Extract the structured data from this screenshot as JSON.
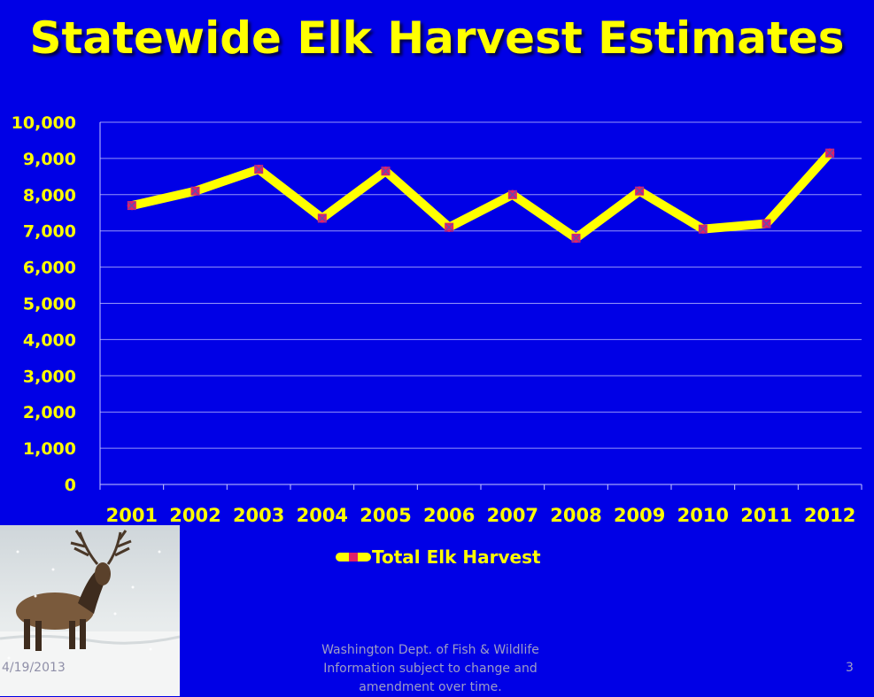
{
  "slide": {
    "title": "Statewide Elk Harvest Estimates",
    "footer_date": "4/19/2013",
    "footer_line1": "Washington Dept. of Fish & Wildlife",
    "footer_line2": "Information subject to change and",
    "footer_line3": "amendment over time.",
    "page_number": "3",
    "photo_icon": "elk-in-snow-photo"
  },
  "colors": {
    "background": "#0000e6",
    "text": "#ffff00",
    "line": "#ffff00",
    "marker": "#e0206a",
    "grid": "#c8c8ff"
  },
  "chart_data": {
    "type": "line",
    "title": "Statewide Elk Harvest Estimates",
    "x": [
      "2001",
      "2002",
      "2003",
      "2004",
      "2005",
      "2006",
      "2007",
      "2008",
      "2009",
      "2010",
      "2011",
      "2012"
    ],
    "series": [
      {
        "name": "Total Elk Harvest",
        "values": [
          7700,
          8100,
          8700,
          7350,
          8650,
          7100,
          8000,
          6800,
          8100,
          7050,
          7200,
          9150
        ]
      }
    ],
    "ylim": [
      0,
      10000
    ],
    "yticks": [
      "0",
      "1,000",
      "2,000",
      "3,000",
      "4,000",
      "5,000",
      "6,000",
      "7,000",
      "8,000",
      "9,000",
      "10,000"
    ],
    "grid": true,
    "legend": "bottom"
  }
}
